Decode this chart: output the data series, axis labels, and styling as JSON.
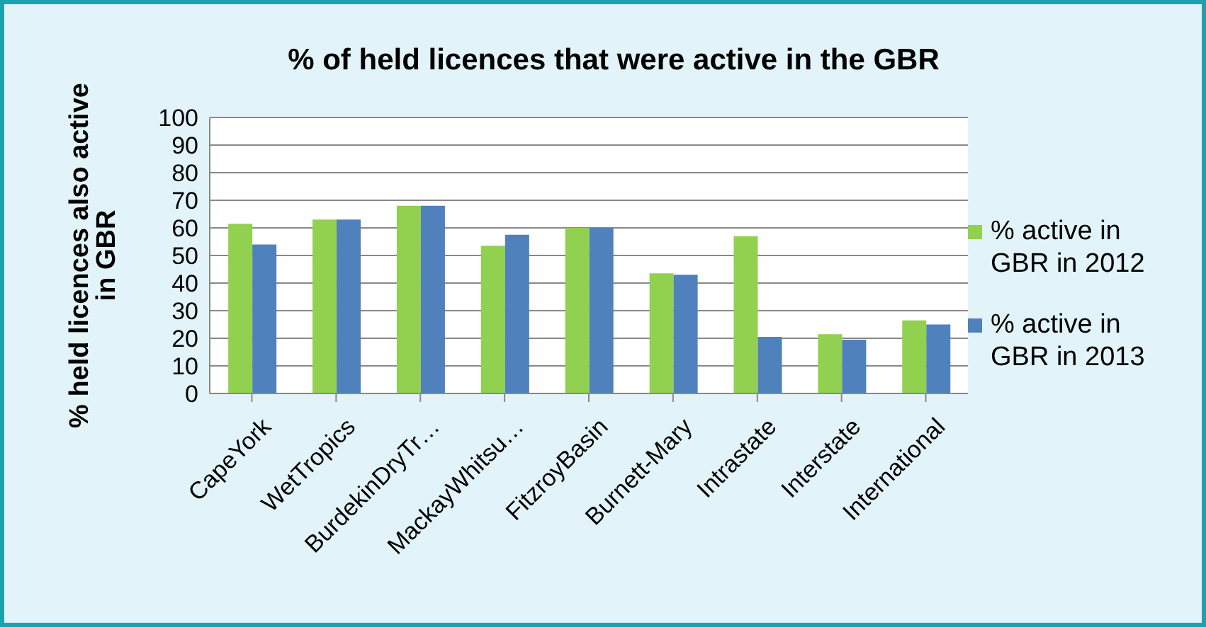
{
  "chart_data": {
    "type": "bar",
    "title": "% of held licences that were active in the GBR",
    "ylabel": "% held licences also active in GBR",
    "categories": [
      "CapeYork",
      "WetTropics",
      "BurdekinDryTr…",
      "MackayWhitsu…",
      "FitzroyBasin",
      "Burnett-Mary",
      "Intrastate",
      "Interstate",
      "International"
    ],
    "series": [
      {
        "name": "% active in GBR in 2012",
        "color": "#92d050",
        "values": [
          61.5,
          63,
          68,
          53.5,
          60,
          43.5,
          57,
          21.5,
          26.5
        ]
      },
      {
        "name": "% active in GBR in 2013",
        "color": "#4f81bd",
        "values": [
          54,
          63,
          68,
          57.5,
          60,
          43,
          20.5,
          19.5,
          25
        ]
      }
    ],
    "ylim": [
      0,
      100
    ],
    "yticks": [
      0,
      10,
      20,
      30,
      40,
      50,
      60,
      70,
      80,
      90,
      100
    ],
    "grid": "y",
    "legend": "right"
  }
}
